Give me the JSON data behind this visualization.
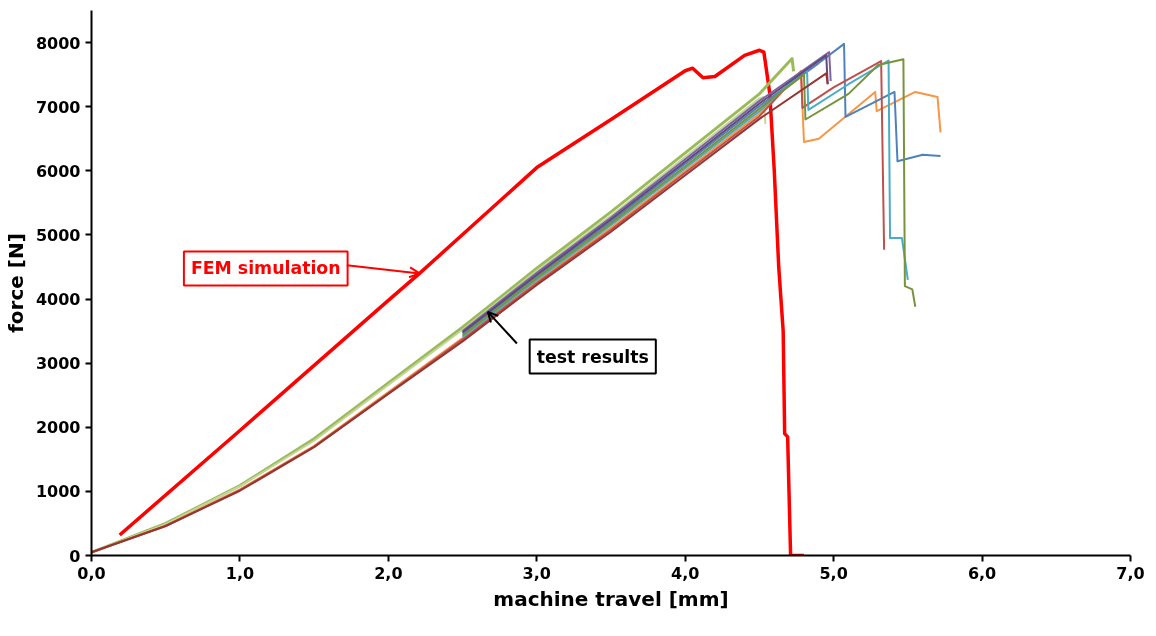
{
  "chart_data": {
    "type": "line",
    "xlabel": "machine travel [mm]",
    "ylabel": "force [N]",
    "xlim": [
      0,
      7
    ],
    "ylim": [
      0,
      8500
    ],
    "xticks": [
      {
        "value": 0,
        "label": "0,0"
      },
      {
        "value": 1,
        "label": "1,0"
      },
      {
        "value": 2,
        "label": "2,0"
      },
      {
        "value": 3,
        "label": "3,0"
      },
      {
        "value": 4,
        "label": "4,0"
      },
      {
        "value": 5,
        "label": "5,0"
      },
      {
        "value": 6,
        "label": "6,0"
      },
      {
        "value": 7,
        "label": "7,0"
      }
    ],
    "yticks": [
      0,
      1000,
      2000,
      3000,
      4000,
      5000,
      6000,
      7000,
      8000
    ],
    "grid": false,
    "marker": "none",
    "line_style": "solid",
    "annotations": [
      {
        "text": "FEM simulation",
        "x": 2.21,
        "y": 4400
      },
      {
        "text": "test results",
        "x": 2.67,
        "y": 3800
      }
    ],
    "series": [
      {
        "color": "#ff0000",
        "x": [
          0.19,
          1.0,
          2.0,
          2.21,
          3.0,
          3.5,
          4.0,
          4.05,
          4.12,
          4.2,
          4.4,
          4.5,
          4.53,
          4.57,
          4.6,
          4.63,
          4.66,
          4.67,
          4.69,
          4.71,
          4.8
        ],
        "values": [
          320,
          1950,
          3980,
          4400,
          6050,
          6800,
          7560,
          7600,
          7450,
          7470,
          7800,
          7880,
          7850,
          7200,
          6000,
          4500,
          3500,
          1900,
          1850,
          0,
          0
        ]
      },
      {
        "color": "#9bbb59",
        "x": [
          0,
          0.5,
          1,
          1.5,
          2,
          2.5,
          3,
          3.5,
          4,
          4.5,
          4.72,
          4.73
        ],
        "values": [
          50,
          500,
          1090,
          1820,
          2690,
          3560,
          4480,
          5360,
          6280,
          7200,
          7750,
          7550
        ]
      },
      {
        "color": "#c3d69b",
        "x": [
          0,
          0.5,
          1,
          1.5,
          2,
          2.5,
          3,
          3.5,
          4,
          4.5,
          4.53,
          4.54
        ],
        "values": [
          50,
          490,
          1080,
          1790,
          2660,
          3520,
          4440,
          5300,
          6220,
          7130,
          7150,
          6730
        ]
      },
      {
        "color": "#f79646",
        "x": [
          0,
          0.5,
          1,
          1.5,
          2,
          2.5,
          3,
          3.5,
          4,
          4.5,
          4.78,
          4.8,
          4.9,
          5.28,
          5.29,
          5.55,
          5.7,
          5.72
        ],
        "values": [
          50,
          470,
          1030,
          1710,
          2550,
          3390,
          4280,
          5110,
          6000,
          6890,
          7550,
          6450,
          6500,
          7230,
          6930,
          7230,
          7150,
          6600
        ]
      },
      {
        "color": "#4f81bd",
        "x": [
          2.5,
          3,
          3.5,
          4,
          4.5,
          4.9,
          5.07,
          5.08,
          5.41,
          5.43,
          5.6,
          5.72
        ],
        "values": [
          3460,
          4360,
          5210,
          6110,
          7010,
          7680,
          7980,
          6840,
          7230,
          6150,
          6250,
          6230
        ]
      },
      {
        "color": "#c0504d",
        "x": [
          0,
          0.5,
          1,
          1.5,
          2,
          2.5,
          3,
          3.5,
          4,
          4.5,
          4.78,
          4.79,
          5.0,
          5.32,
          5.34
        ],
        "values": [
          50,
          460,
          1020,
          1700,
          2530,
          3370,
          4250,
          5080,
          5970,
          6850,
          7550,
          6980,
          7300,
          7710,
          4770
        ]
      },
      {
        "color": "#4bacc6",
        "x": [
          2.5,
          3,
          3.5,
          4,
          4.5,
          4.82,
          4.83,
          5.1,
          5.37,
          5.38,
          5.46,
          5.5
        ],
        "values": [
          3410,
          4300,
          5150,
          6040,
          6930,
          7600,
          6950,
          7350,
          7720,
          4950,
          4950,
          4300
        ]
      },
      {
        "color": "#77933c",
        "x": [
          2.5,
          3,
          3.5,
          4,
          4.5,
          4.8,
          4.81,
          5.1,
          5.3,
          5.47,
          5.48,
          5.53,
          5.55
        ],
        "values": [
          3430,
          4330,
          5180,
          6070,
          6970,
          7500,
          6800,
          7200,
          7650,
          7740,
          4200,
          4150,
          3880
        ]
      },
      {
        "color": "#8064a2",
        "x": [
          2.5,
          3,
          3.5,
          4,
          4.5,
          4.97,
          4.98
        ],
        "values": [
          3500,
          4410,
          5270,
          6180,
          7090,
          7850,
          7400
        ]
      },
      {
        "color": "#604a7b",
        "x": [
          2.5,
          3,
          3.5,
          4,
          4.5,
          4.95,
          4.96
        ],
        "values": [
          3480,
          4380,
          5240,
          6140,
          7050,
          7800,
          7350
        ]
      },
      {
        "color": "#943634",
        "x": [
          0,
          0.5,
          1,
          1.5,
          2,
          2.5,
          3,
          3.5,
          4,
          4.5,
          4.95,
          4.96
        ],
        "values": [
          50,
          460,
          1010,
          1690,
          2520,
          3340,
          4220,
          5050,
          5930,
          6810,
          7520,
          7350
        ]
      }
    ]
  }
}
